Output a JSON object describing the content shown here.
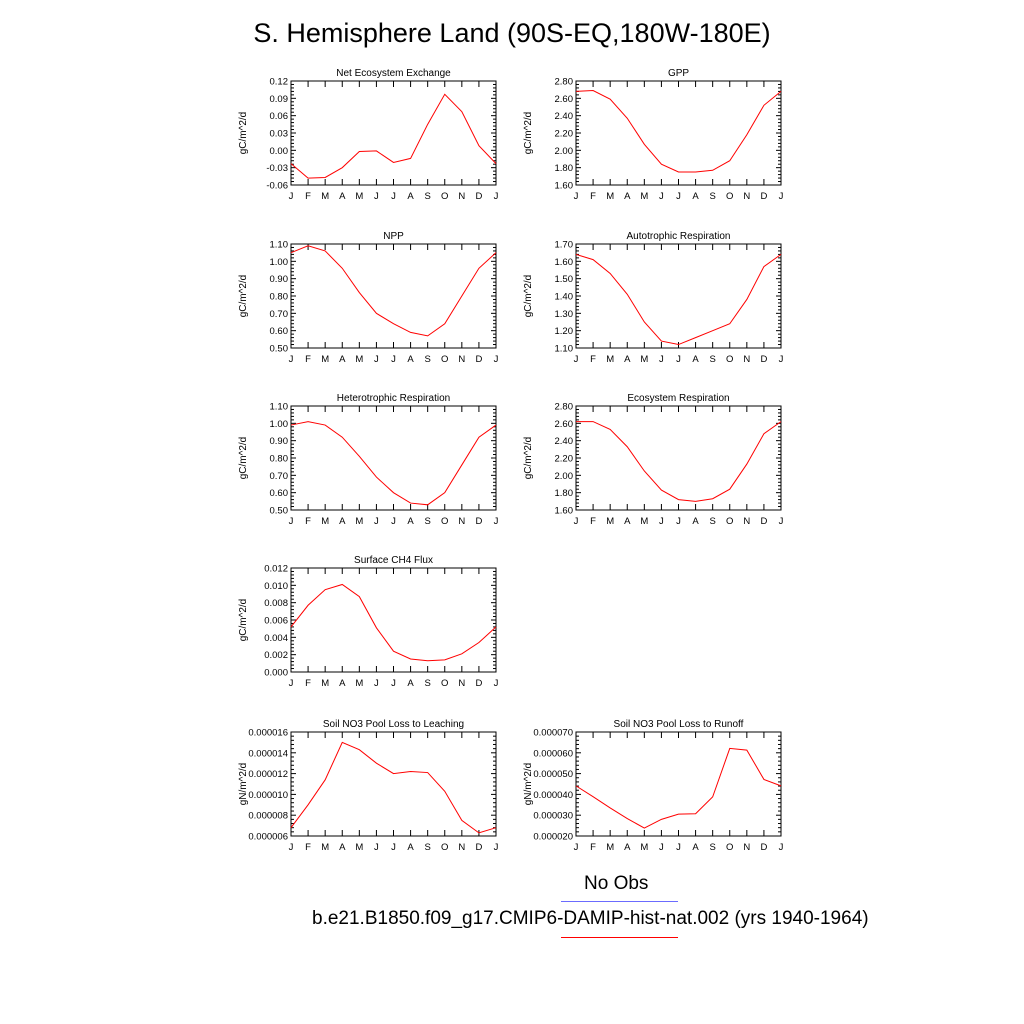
{
  "figure": {
    "title": "S. Hemisphere Land (90S-EQ,180W-180E)",
    "colors": {
      "model": "#ff0000",
      "obs": "#6b6bff",
      "frame": "#000000"
    }
  },
  "legend": {
    "obs_label": "No Obs",
    "model_label": "b.e21.B1850.f09_g17.CMIP6-DAMIP-hist-nat.002 (yrs 1940-1964)"
  },
  "chart_data": [
    {
      "type": "line",
      "title": "Net Ecosystem Exchange",
      "ylabel": "gC/m^2/d",
      "x": [
        "J",
        "F",
        "M",
        "A",
        "M",
        "J",
        "J",
        "A",
        "S",
        "O",
        "N",
        "D",
        "J"
      ],
      "ylim": [
        -0.06,
        0.12
      ],
      "yticks": [
        "-0.06",
        "-0.03",
        "0.00",
        "0.03",
        "0.06",
        "0.09",
        "0.12"
      ],
      "series": [
        {
          "values": [
            -0.023,
            -0.048,
            -0.047,
            -0.03,
            -0.002,
            -0.001,
            -0.021,
            -0.014,
            0.045,
            0.097,
            0.067,
            0.008,
            -0.023
          ]
        }
      ]
    },
    {
      "type": "line",
      "title": "GPP",
      "ylabel": "gC/m^2/d",
      "x": [
        "J",
        "F",
        "M",
        "A",
        "M",
        "J",
        "J",
        "A",
        "S",
        "O",
        "N",
        "D",
        "J"
      ],
      "ylim": [
        1.6,
        2.8
      ],
      "yticks": [
        "1.60",
        "1.80",
        "2.00",
        "2.20",
        "2.40",
        "2.60",
        "2.80"
      ],
      "series": [
        {
          "values": [
            2.68,
            2.69,
            2.59,
            2.37,
            2.07,
            1.84,
            1.75,
            1.75,
            1.77,
            1.88,
            2.18,
            2.52,
            2.68
          ]
        }
      ]
    },
    {
      "type": "line",
      "title": "NPP",
      "ylabel": "gC/m^2/d",
      "x": [
        "J",
        "F",
        "M",
        "A",
        "M",
        "J",
        "J",
        "A",
        "S",
        "O",
        "N",
        "D",
        "J"
      ],
      "ylim": [
        0.5,
        1.1
      ],
      "yticks": [
        "0.50",
        "0.60",
        "0.70",
        "0.80",
        "0.90",
        "1.00",
        "1.10"
      ],
      "series": [
        {
          "values": [
            1.05,
            1.09,
            1.06,
            0.96,
            0.82,
            0.7,
            0.64,
            0.59,
            0.57,
            0.64,
            0.8,
            0.96,
            1.05
          ]
        }
      ]
    },
    {
      "type": "line",
      "title": "Autotrophic Respiration",
      "ylabel": "gC/m^2/d",
      "x": [
        "J",
        "F",
        "M",
        "A",
        "M",
        "J",
        "J",
        "A",
        "S",
        "O",
        "N",
        "D",
        "J"
      ],
      "ylim": [
        1.1,
        1.7
      ],
      "yticks": [
        "1.10",
        "1.20",
        "1.30",
        "1.40",
        "1.50",
        "1.60",
        "1.70"
      ],
      "series": [
        {
          "values": [
            1.64,
            1.61,
            1.53,
            1.41,
            1.25,
            1.14,
            1.12,
            1.16,
            1.2,
            1.24,
            1.38,
            1.57,
            1.64
          ]
        }
      ]
    },
    {
      "type": "line",
      "title": "Heterotrophic Respiration",
      "ylabel": "gC/m^2/d",
      "x": [
        "J",
        "F",
        "M",
        "A",
        "M",
        "J",
        "J",
        "A",
        "S",
        "O",
        "N",
        "D",
        "J"
      ],
      "ylim": [
        0.5,
        1.1
      ],
      "yticks": [
        "0.50",
        "0.60",
        "0.70",
        "0.80",
        "0.90",
        "1.00",
        "1.10"
      ],
      "series": [
        {
          "values": [
            0.99,
            1.01,
            0.99,
            0.92,
            0.81,
            0.69,
            0.6,
            0.54,
            0.53,
            0.6,
            0.76,
            0.92,
            0.99
          ]
        }
      ]
    },
    {
      "type": "line",
      "title": "Ecosystem Respiration",
      "ylabel": "gC/m^2/d",
      "x": [
        "J",
        "F",
        "M",
        "A",
        "M",
        "J",
        "J",
        "A",
        "S",
        "O",
        "N",
        "D",
        "J"
      ],
      "ylim": [
        1.6,
        2.8
      ],
      "yticks": [
        "1.60",
        "1.80",
        "2.00",
        "2.20",
        "2.40",
        "2.60",
        "2.80"
      ],
      "series": [
        {
          "values": [
            2.62,
            2.62,
            2.53,
            2.33,
            2.05,
            1.83,
            1.72,
            1.7,
            1.73,
            1.84,
            2.13,
            2.48,
            2.62
          ]
        }
      ]
    },
    {
      "type": "line",
      "title": "Surface CH4 Flux",
      "ylabel": "gC/m^2/d",
      "x": [
        "J",
        "F",
        "M",
        "A",
        "M",
        "J",
        "J",
        "A",
        "S",
        "O",
        "N",
        "D",
        "J"
      ],
      "ylim": [
        0.0,
        0.012
      ],
      "yticks": [
        "0.000",
        "0.002",
        "0.004",
        "0.006",
        "0.008",
        "0.010",
        "0.012"
      ],
      "series": [
        {
          "values": [
            0.0052,
            0.0077,
            0.0095,
            0.0101,
            0.0087,
            0.0051,
            0.0024,
            0.0015,
            0.0013,
            0.0014,
            0.0021,
            0.0034,
            0.0052
          ]
        }
      ]
    },
    {
      "type": "line",
      "title": "Soil NO3 Pool Loss to Leaching",
      "ylabel": "gN/m^2/d",
      "x": [
        "J",
        "F",
        "M",
        "A",
        "M",
        "J",
        "J",
        "A",
        "S",
        "O",
        "N",
        "D",
        "J"
      ],
      "ylim": [
        6e-06,
        1.6e-05
      ],
      "yticks": [
        "0.000006",
        "0.000008",
        "0.000010",
        "0.000012",
        "0.000014",
        "0.000016"
      ],
      "series": [
        {
          "values": [
            6.8e-06,
            9e-06,
            1.14e-05,
            1.5e-05,
            1.43e-05,
            1.3e-05,
            1.2e-05,
            1.22e-05,
            1.21e-05,
            1.03e-05,
            7.5e-06,
            6.3e-06,
            6.8e-06
          ]
        }
      ]
    },
    {
      "type": "line",
      "title": "Soil NO3 Pool Loss to Runoff",
      "ylabel": "gN/m^2/d",
      "x": [
        "J",
        "F",
        "M",
        "A",
        "M",
        "J",
        "J",
        "A",
        "S",
        "O",
        "N",
        "D",
        "J"
      ],
      "ylim": [
        2e-05,
        7e-05
      ],
      "yticks": [
        "0.000020",
        "0.000030",
        "0.000040",
        "0.000050",
        "0.000060",
        "0.000070"
      ],
      "series": [
        {
          "values": [
            4.41e-05,
            3.89e-05,
            3.35e-05,
            2.84e-05,
            2.38e-05,
            2.8e-05,
            3.05e-05,
            3.07e-05,
            3.88e-05,
            6.21e-05,
            6.13e-05,
            4.72e-05,
            4.41e-05
          ]
        }
      ]
    }
  ]
}
